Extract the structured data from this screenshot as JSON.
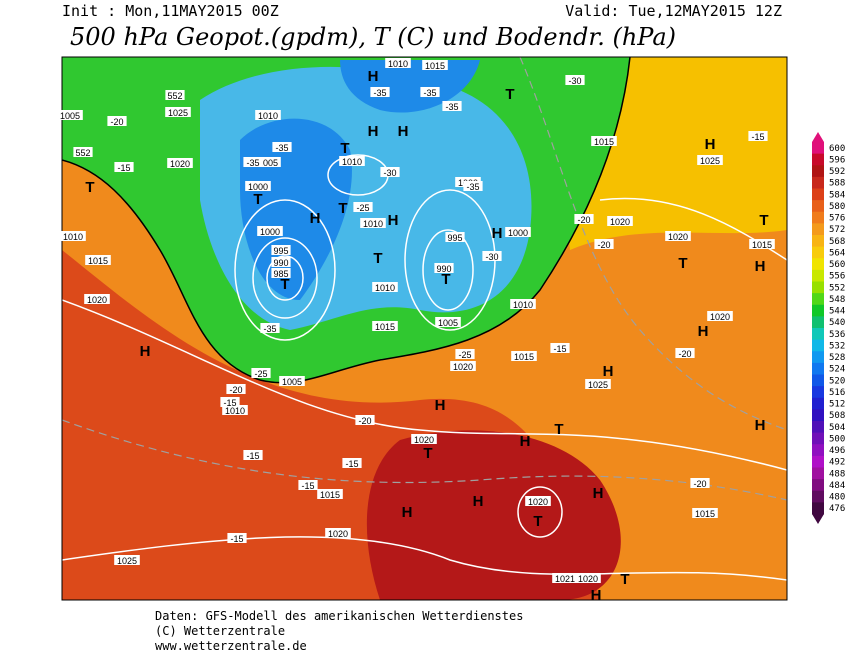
{
  "header": {
    "init": "Init : Mon,11MAY2015 00Z",
    "valid": "Valid: Tue,12MAY2015 12Z",
    "title": "500 hPa Geopot.(gpdm), T (C) und Bodendr. (hPa)"
  },
  "map": {
    "labels": [
      "H",
      "T",
      "H",
      "H",
      "T",
      "T",
      "H",
      "T",
      "H",
      "T",
      "H",
      "T",
      "T",
      "T",
      "H",
      "T",
      "T",
      "H",
      "H",
      "H",
      "H",
      "H",
      "H",
      "T",
      "T",
      "H",
      "H",
      "T",
      "H",
      "H",
      "T",
      "H",
      "1010",
      "1015",
      "1025",
      "1010",
      "1020",
      "1005",
      "1010",
      "1000",
      "1000",
      "995",
      "990",
      "985",
      "995",
      "990",
      "1000",
      "1000",
      "1010",
      "1010",
      "1015",
      "1005",
      "1010",
      "1015",
      "1020",
      "1005",
      "1010",
      "1015",
      "1025",
      "1020",
      "1020",
      "1015",
      "1020",
      "1025",
      "1020",
      "1015",
      "1020",
      "1025",
      "1020",
      "1015",
      "1021",
      "1020",
      "1010",
      "1015",
      "1020",
      "1005",
      "-30",
      "-35",
      "-35",
      "-35",
      "-20",
      "-15",
      "-35",
      "-35",
      "-30",
      "-35",
      "-25",
      "-30",
      "-35",
      "-25",
      "-25",
      "-20",
      "-15",
      "-20",
      "-15",
      "-15",
      "-15",
      "-15",
      "-20",
      "-20",
      "-15",
      "-15",
      "-20",
      "-20",
      "552",
      "552"
    ]
  },
  "legend": {
    "labels": [
      600,
      596,
      592,
      588,
      584,
      580,
      576,
      572,
      568,
      564,
      560,
      556,
      552,
      548,
      544,
      540,
      536,
      532,
      528,
      524,
      520,
      516,
      512,
      508,
      504,
      500,
      496,
      492,
      488,
      484,
      480,
      476
    ],
    "colors": [
      "#e0107a",
      "#c80a2a",
      "#b01414",
      "#c8281c",
      "#dc4018",
      "#e8601a",
      "#f07c1c",
      "#f49a1c",
      "#f8b414",
      "#f8cc0c",
      "#f0e400",
      "#c8e800",
      "#98e000",
      "#50d818",
      "#10c828",
      "#10c070",
      "#10c8b8",
      "#10b8e8",
      "#1098f0",
      "#1078f0",
      "#1058e8",
      "#1838e0",
      "#2020d0",
      "#3010c0",
      "#5010b8",
      "#7010b8",
      "#9010c0",
      "#b010c8",
      "#a010a0",
      "#800c80",
      "#600c60",
      "#400840"
    ]
  },
  "footer": {
    "lines": [
      "Daten: GFS-Modell des amerikanischen Wetterdienstes",
      "(C) Wetterzentrale",
      "www.wetterzentrale.de"
    ]
  }
}
